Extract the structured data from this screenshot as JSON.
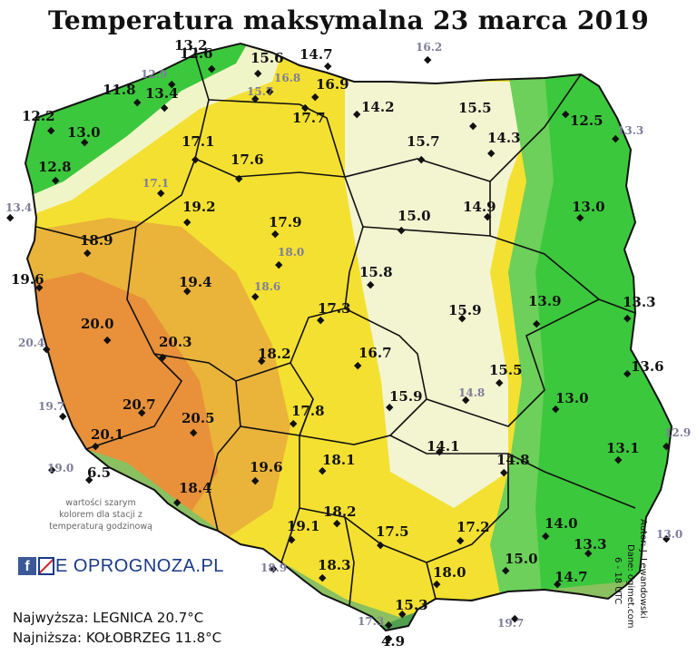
{
  "title": "Temperatura maksymalna 23 marca 2019",
  "note": "wartości szarym kolorem dla stacji z temperaturą godzinową",
  "logo": {
    "fb": "f",
    "text": "E OPROGNOZA.PL"
  },
  "highest": "Najwyższa: LEGNICA 20.7°C",
  "lowest": "Najniższa: KOŁOBRZEG 11.8°C",
  "credits": {
    "author": "Autor: J. Lewandowski",
    "source": "Dane: ogimet.com",
    "hours": "6 - 18 UTC"
  },
  "colors": {
    "sea": "#ffffff",
    "cold": "#3cc83c",
    "mild": "#f0f5c8",
    "warm": "#f4e030",
    "hot": "#e8903a",
    "mountain": "#58b058",
    "border": "#111111"
  },
  "stations": [
    {
      "v": "13.2",
      "g": false
    },
    {
      "v": "12.6",
      "g": false
    },
    {
      "v": "15.6",
      "g": false
    },
    {
      "v": "14.7",
      "g": false
    },
    {
      "v": "16.2",
      "g": true
    },
    {
      "v": "12.9",
      "g": true
    },
    {
      "v": "16.8",
      "g": true
    },
    {
      "v": "15.7",
      "g": true
    },
    {
      "v": "16.9",
      "g": false
    },
    {
      "v": "11.8",
      "g": false
    },
    {
      "v": "13.4",
      "g": false
    },
    {
      "v": "17.7",
      "g": false
    },
    {
      "v": "14.2",
      "g": false
    },
    {
      "v": "15.5",
      "g": false
    },
    {
      "v": "12.5",
      "g": false
    },
    {
      "v": "12.2",
      "g": false
    },
    {
      "v": "13.3",
      "g": true
    },
    {
      "v": "13.0",
      "g": false
    },
    {
      "v": "17.1",
      "g": false
    },
    {
      "v": "15.7",
      "g": false
    },
    {
      "v": "14.3",
      "g": false
    },
    {
      "v": "12.8",
      "g": false
    },
    {
      "v": "17.6",
      "g": false
    },
    {
      "v": "17.1",
      "g": true
    },
    {
      "v": "13.4",
      "g": true
    },
    {
      "v": "19.2",
      "g": false
    },
    {
      "v": "17.9",
      "g": false
    },
    {
      "v": "15.0",
      "g": false
    },
    {
      "v": "14.9",
      "g": false
    },
    {
      "v": "13.0",
      "g": false
    },
    {
      "v": "18.9",
      "g": false
    },
    {
      "v": "18.0",
      "g": true
    },
    {
      "v": "19.6",
      "g": false
    },
    {
      "v": "19.4",
      "g": false
    },
    {
      "v": "18.6",
      "g": true
    },
    {
      "v": "15.8",
      "g": false
    },
    {
      "v": "17.3",
      "g": false
    },
    {
      "v": "15.9",
      "g": false
    },
    {
      "v": "13.9",
      "g": false
    },
    {
      "v": "13.3",
      "g": false
    },
    {
      "v": "20.0",
      "g": false
    },
    {
      "v": "20.4",
      "g": true
    },
    {
      "v": "20.3",
      "g": false
    },
    {
      "v": "18.2",
      "g": false
    },
    {
      "v": "16.7",
      "g": false
    },
    {
      "v": "13.6",
      "g": false
    },
    {
      "v": "15.5",
      "g": false
    },
    {
      "v": "14.8",
      "g": true
    },
    {
      "v": "15.9",
      "g": false
    },
    {
      "v": "13.0",
      "g": false
    },
    {
      "v": "19.7",
      "g": true
    },
    {
      "v": "20.7",
      "g": false
    },
    {
      "v": "20.5",
      "g": false
    },
    {
      "v": "17.8",
      "g": false
    },
    {
      "v": "14.1",
      "g": false
    },
    {
      "v": "12.9",
      "g": true
    },
    {
      "v": "13.1",
      "g": false
    },
    {
      "v": "20.1",
      "g": false
    },
    {
      "v": "19.0",
      "g": true
    },
    {
      "v": "6.5",
      "g": false
    },
    {
      "v": "18.1",
      "g": false
    },
    {
      "v": "14.8",
      "g": false
    },
    {
      "v": "19.6",
      "g": false
    },
    {
      "v": "18.4",
      "g": false
    },
    {
      "v": "14.0",
      "g": false
    },
    {
      "v": "18.2",
      "g": false
    },
    {
      "v": "19.1",
      "g": false
    },
    {
      "v": "17.5",
      "g": false
    },
    {
      "v": "17.2",
      "g": false
    },
    {
      "v": "13.0",
      "g": true
    },
    {
      "v": "13.3",
      "g": false
    },
    {
      "v": "15.0",
      "g": false
    },
    {
      "v": "18.9",
      "g": true
    },
    {
      "v": "18.3",
      "g": false
    },
    {
      "v": "18.0",
      "g": false
    },
    {
      "v": "14.7",
      "g": false
    },
    {
      "v": "15.3",
      "g": false
    },
    {
      "v": "17.3",
      "g": true
    },
    {
      "v": "19.7",
      "g": true
    },
    {
      "v": "4.9",
      "g": false
    }
  ]
}
